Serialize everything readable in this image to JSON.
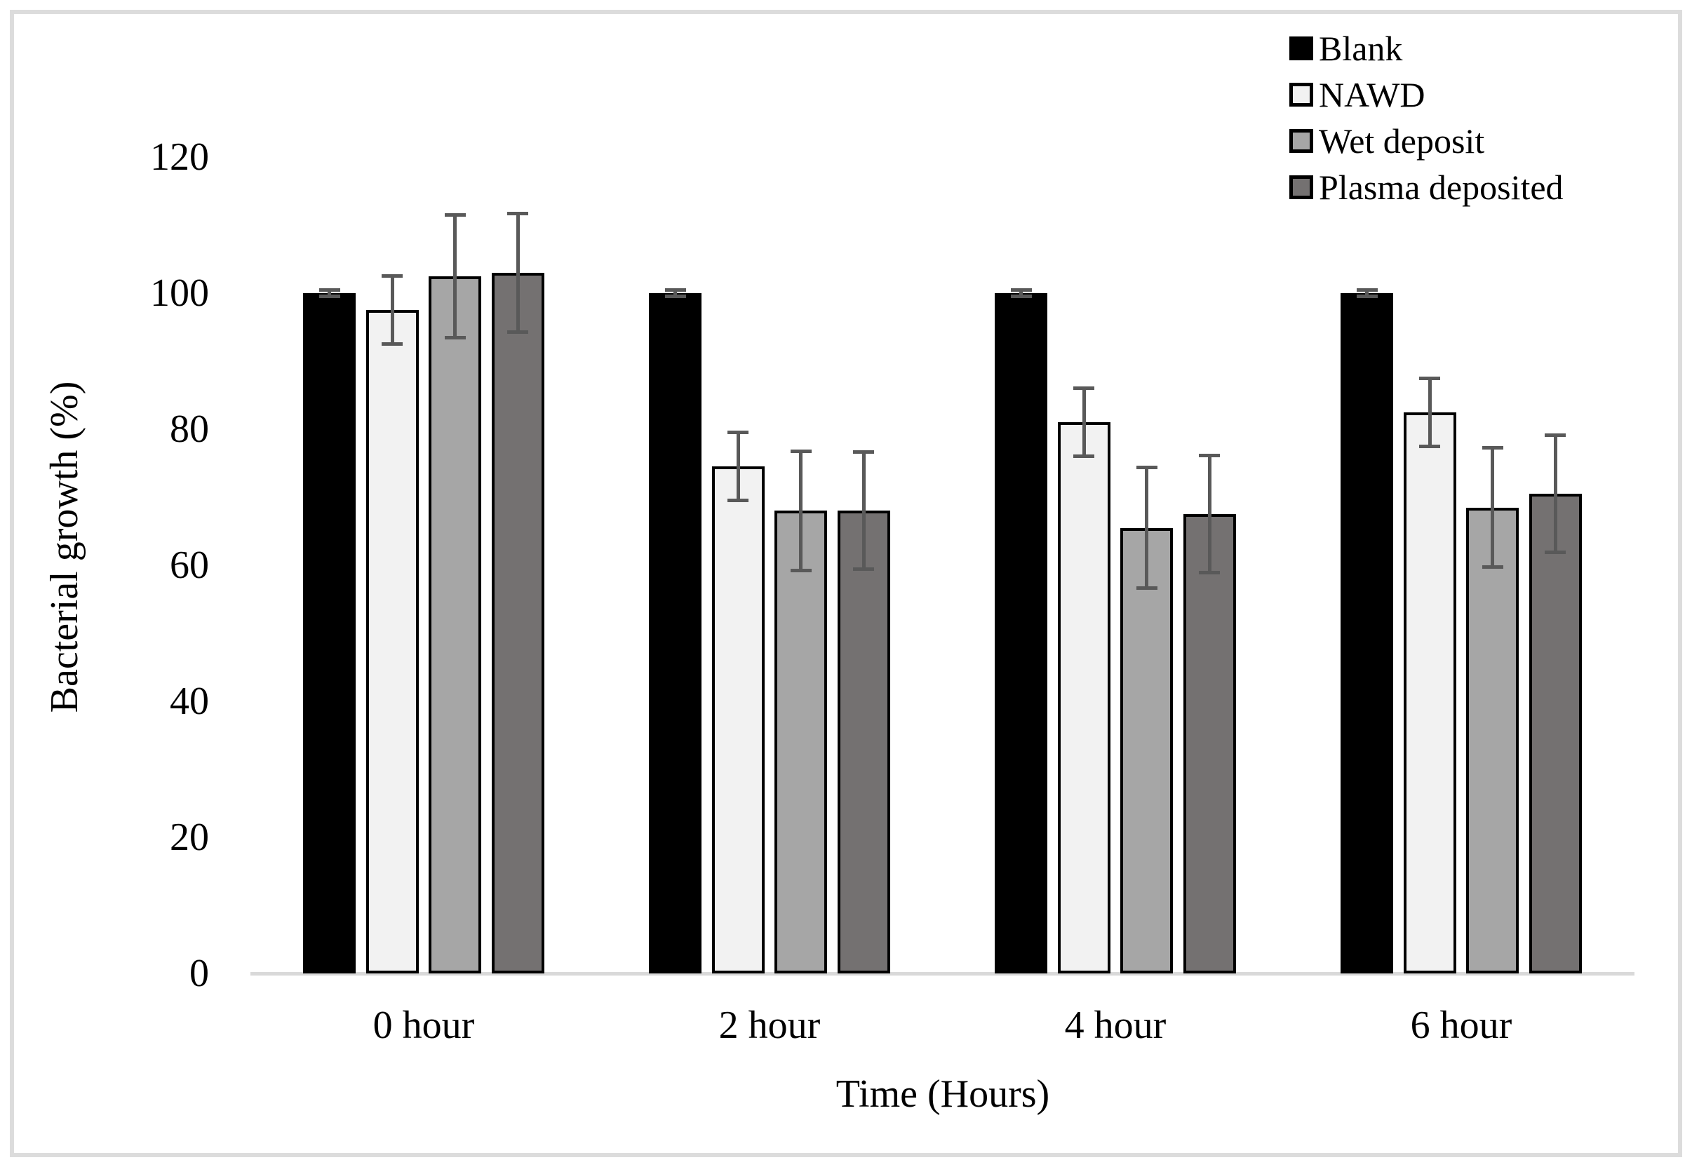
{
  "chart_data": {
    "type": "bar",
    "title": "",
    "xlabel": "Time (Hours)",
    "ylabel": "Bacterial growth (%)",
    "ylim": [
      0,
      120
    ],
    "ytick_step": 20,
    "yticks": [
      "0",
      "20",
      "40",
      "60",
      "80",
      "100",
      "120"
    ],
    "categories": [
      "0 hour",
      "2 hour",
      "4 hour",
      "6 hour"
    ],
    "series": [
      {
        "name": "Blank",
        "fill": "#000000",
        "values": [
          100,
          100,
          100,
          100
        ],
        "errors": [
          0.5,
          0.5,
          0.5,
          0.5
        ]
      },
      {
        "name": "NAWD",
        "fill": "#f2f2f2",
        "values": [
          97.5,
          74.5,
          81,
          82.5
        ],
        "errors": [
          5,
          5,
          5,
          5
        ]
      },
      {
        "name": "Wet deposit",
        "fill": "#a6a6a6",
        "values": [
          102.5,
          68,
          65.5,
          68.5
        ],
        "errors": [
          9,
          8.8,
          8.9,
          8.8
        ]
      },
      {
        "name": "Plasma deposited",
        "fill": "#747171",
        "values": [
          103,
          68,
          67.5,
          70.5
        ],
        "errors": [
          8.7,
          8.6,
          8.6,
          8.6
        ]
      }
    ],
    "legend_position": "top-right",
    "grid": false,
    "colors": {
      "error_bar": "#595959",
      "axis_line": "#d9d9d9",
      "frame": "#dcdcdc",
      "bar_border": "#000000",
      "text": "#000000"
    }
  }
}
